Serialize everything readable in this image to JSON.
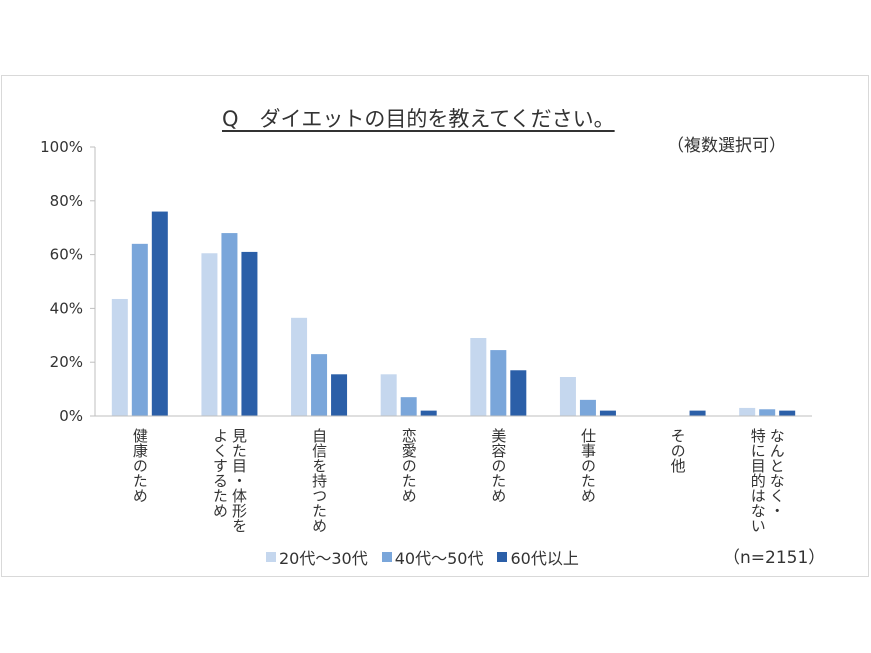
{
  "chart_data": {
    "type": "bar",
    "title": "Q　ダイエットの目的を教えてください。",
    "subtitle": "（複数選択可）",
    "note": "（n=2151）",
    "categories": [
      [
        "健康のため"
      ],
      [
        "見た目・体形を",
        "よくするため"
      ],
      [
        "自信を持つため"
      ],
      [
        "恋愛のため"
      ],
      [
        "美容のため"
      ],
      [
        "仕事のため"
      ],
      [
        "その他"
      ],
      [
        "なんとなく・",
        "特に目的はない"
      ]
    ],
    "series": [
      {
        "name": "20代〜30代",
        "color": "#c5d7ee",
        "values": [
          43.5,
          60.5,
          36.5,
          15.5,
          29,
          14.5,
          0,
          3
        ]
      },
      {
        "name": "40代〜50代",
        "color": "#7aa6da",
        "values": [
          64,
          68,
          23,
          7,
          24.5,
          6,
          0,
          2.5
        ]
      },
      {
        "name": "60代以上",
        "color": "#2b5fa8",
        "values": [
          76,
          61,
          15.5,
          2,
          17,
          2,
          2,
          2
        ]
      }
    ],
    "ylim": [
      0,
      100
    ],
    "yticks": [
      "0%",
      "20%",
      "40%",
      "60%",
      "80%",
      "100%"
    ],
    "grid": false,
    "legend_position": "bottom"
  }
}
